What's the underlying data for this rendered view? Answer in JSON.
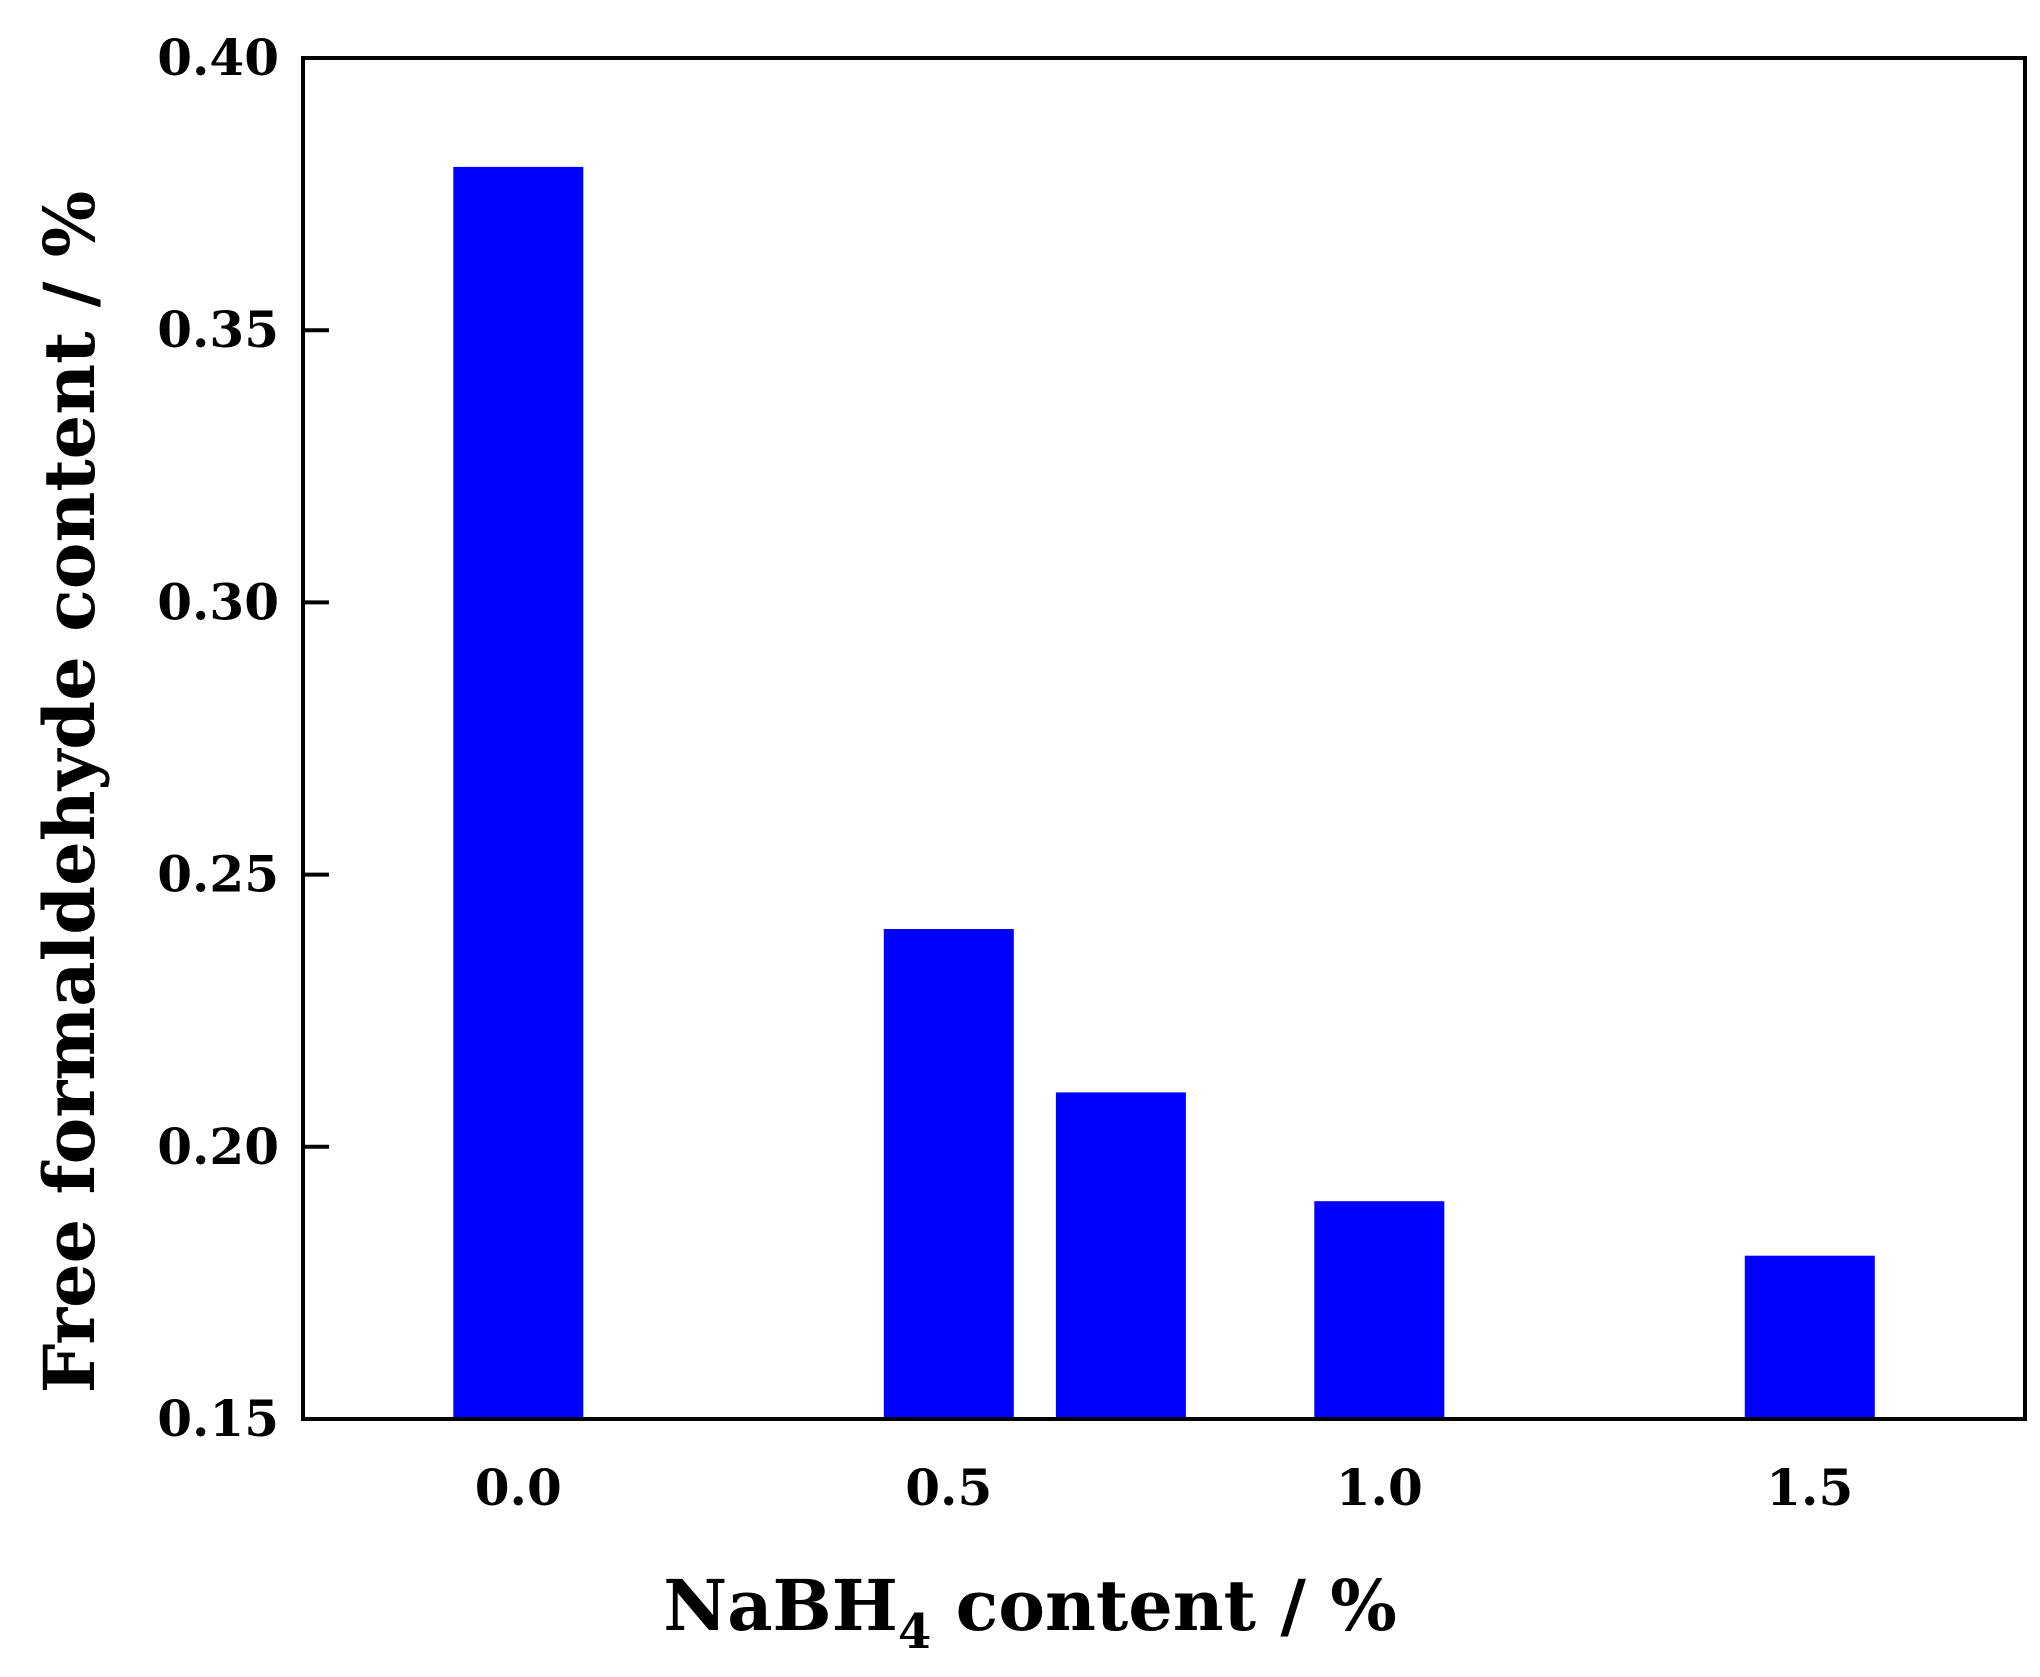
{
  "chart_data": {
    "type": "bar",
    "x": [
      0.0,
      0.5,
      0.7,
      1.0,
      1.5
    ],
    "values": [
      0.38,
      0.24,
      0.21,
      0.19,
      0.18
    ],
    "color": "#0000ff",
    "xlim": [
      -0.25,
      1.75
    ],
    "ylim": [
      0.15,
      0.4
    ],
    "x_ticks": [
      {
        "value": 0.0,
        "label": "0.0"
      },
      {
        "value": 0.5,
        "label": "0.5"
      },
      {
        "value": 1.0,
        "label": "1.0"
      },
      {
        "value": 1.5,
        "label": "1.5"
      }
    ],
    "y_ticks": [
      {
        "value": 0.15,
        "label": "0.15"
      },
      {
        "value": 0.2,
        "label": "0.20"
      },
      {
        "value": 0.25,
        "label": "0.25"
      },
      {
        "value": 0.3,
        "label": "0.30"
      },
      {
        "value": 0.35,
        "label": "0.35"
      },
      {
        "value": 0.4,
        "label": "0.40"
      }
    ],
    "xlabel": {
      "main": "NaBH",
      "sub": "4",
      "rest": " content / %"
    },
    "ylabel": "Free formaldehyde content / %",
    "grid": false,
    "legend": "none"
  }
}
